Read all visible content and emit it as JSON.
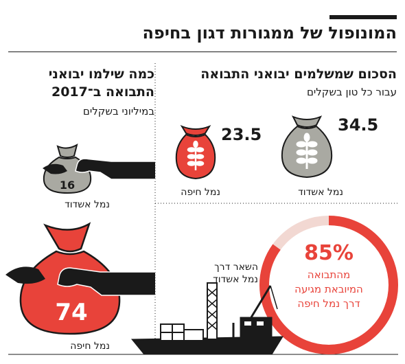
{
  "title": "המונופול של ממגורות דגון בחיפה",
  "colors": {
    "accent": "#e8433a",
    "ink": "#1a1a1a",
    "grey": "#a9a9a2",
    "ring_rest": "#f2d8d2"
  },
  "price_section": {
    "title": "הסכום שמשלמים יבואני התבואה",
    "subtitle": "עבור כל טון בשקלים",
    "items": [
      {
        "port": "נמל אשדוד",
        "value": "34.5",
        "icon": "grain-sack-icon"
      },
      {
        "port": "נמל חיפה",
        "value": "23.5",
        "icon": "grain-sack-icon"
      }
    ]
  },
  "total_section": {
    "title_line1": "כמה שילמו יבואני",
    "title_line2": "התבואה ב־2017",
    "subtitle": "במיליוני בשקלים",
    "items": [
      {
        "port": "נמל אשדוד",
        "value": "16",
        "icon": "money-bag-icon"
      },
      {
        "port": "נמל חיפה",
        "value": "74",
        "icon": "money-bag-icon"
      }
    ]
  },
  "share_section": {
    "percent": "85%",
    "line1": "מהתבואה",
    "line2": "המיובאת מגיעה",
    "line3": "דרך נמל חיפה",
    "rest_line1": "השאר דרך",
    "rest_line2": "נמל אשדוד",
    "icon": "cargo-ship-icon"
  },
  "chart_data": [
    {
      "type": "bar",
      "title": "הסכום שמשלמים יבואני התבואה",
      "subtitle": "עבור כל טון בשקלים",
      "categories": [
        "נמל אשדוד",
        "נמל חיפה"
      ],
      "values": [
        34.5,
        23.5
      ]
    },
    {
      "type": "bar",
      "title": "כמה שילמו יבואני התבואה ב־2017",
      "subtitle": "במיליוני בשקלים",
      "categories": [
        "נמל אשדוד",
        "נמל חיפה"
      ],
      "values": [
        16,
        74
      ]
    },
    {
      "type": "pie",
      "categories": [
        "נמל חיפה",
        "נמל אשדוד"
      ],
      "values": [
        85,
        15
      ]
    }
  ]
}
